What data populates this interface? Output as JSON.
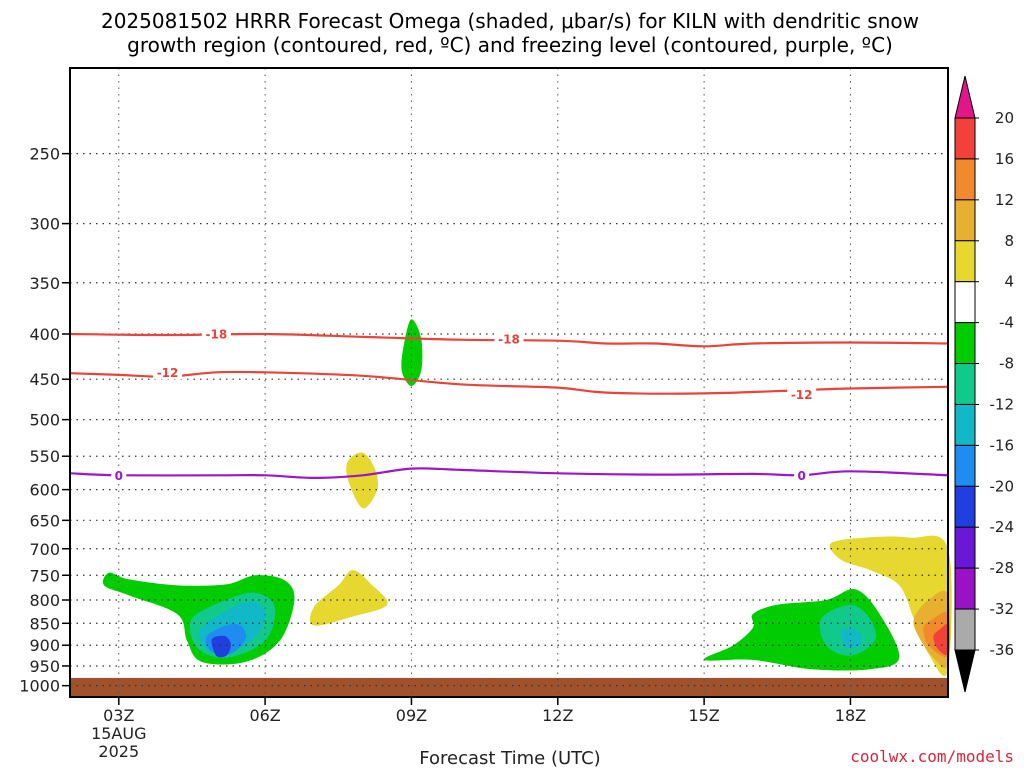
{
  "title_line1": "2025081502 HRRR Forecast Omega (shaded, μbar/s) for KILN with dendritic snow",
  "title_line2": "growth region (contoured, red, ºC) and freezing level (contoured, purple, ºC)",
  "credit": "coolwx.com/models",
  "chart_data": {
    "type": "area",
    "title": "2025081502 HRRR Forecast Omega (shaded, μbar/s) for KILN with dendritic snow growth region (contoured, red, ºC) and freezing level (contoured, purple, ºC)",
    "xlabel": "Forecast Time (UTC)",
    "ylabel": "",
    "y_scale": "log (pressure, hPa, inverted)",
    "ylim": [
      200,
      1030
    ],
    "xlim": [
      2,
      20
    ],
    "grid": true,
    "y_ticks": [
      250,
      300,
      350,
      400,
      450,
      500,
      550,
      600,
      650,
      700,
      750,
      800,
      850,
      900,
      950,
      1000
    ],
    "x_ticks": [
      {
        "x": 3,
        "label": "03Z",
        "sub1": "15AUG",
        "sub2": "2025"
      },
      {
        "x": 6,
        "label": "06Z"
      },
      {
        "x": 9,
        "label": "09Z"
      },
      {
        "x": 12,
        "label": "12Z"
      },
      {
        "x": 15,
        "label": "15Z"
      },
      {
        "x": 18,
        "label": "18Z"
      }
    ],
    "ground_level_hpa": 980,
    "contour_lines": [
      {
        "label": "-18",
        "color": "#e8443a",
        "label_positions": [
          [
            5,
            400
          ],
          [
            11,
            405
          ]
        ],
        "points": [
          [
            2,
            400
          ],
          [
            4,
            401
          ],
          [
            6,
            400
          ],
          [
            8,
            403
          ],
          [
            10,
            406
          ],
          [
            12,
            407
          ],
          [
            13,
            410
          ],
          [
            14,
            410
          ],
          [
            15,
            413
          ],
          [
            16,
            410
          ],
          [
            18,
            409
          ],
          [
            20,
            410
          ]
        ]
      },
      {
        "label": "-12",
        "color": "#e8443a",
        "label_positions": [
          [
            4,
            442
          ],
          [
            17,
            468
          ]
        ],
        "points": [
          [
            2,
            443
          ],
          [
            3,
            445
          ],
          [
            4,
            447
          ],
          [
            5,
            442
          ],
          [
            6,
            442
          ],
          [
            8,
            446
          ],
          [
            10,
            456
          ],
          [
            12,
            460
          ],
          [
            13,
            466
          ],
          [
            15,
            467
          ],
          [
            17,
            463
          ],
          [
            18,
            461
          ],
          [
            20,
            459
          ]
        ]
      },
      {
        "label": "0",
        "color": "#9b17c9",
        "label_positions": [
          [
            3,
            578
          ],
          [
            17,
            578
          ]
        ],
        "points": [
          [
            2,
            575
          ],
          [
            3,
            578
          ],
          [
            5,
            578
          ],
          [
            6,
            578
          ],
          [
            7,
            582
          ],
          [
            8,
            578
          ],
          [
            9,
            568
          ],
          [
            10,
            570
          ],
          [
            12,
            575
          ],
          [
            14,
            577
          ],
          [
            16,
            576
          ],
          [
            17,
            578
          ],
          [
            18,
            572
          ],
          [
            20,
            578
          ]
        ]
      }
    ],
    "shaded_regions": [
      {
        "value_range": [
          -8,
          -4
        ],
        "color": "#00cc00",
        "points": [
          [
            2.8,
            745
          ],
          [
            2.7,
            770
          ],
          [
            3.2,
            790
          ],
          [
            4.2,
            830
          ],
          [
            4.4,
            890
          ],
          [
            4.7,
            940
          ],
          [
            5.6,
            940
          ],
          [
            6.3,
            890
          ],
          [
            6.6,
            800
          ],
          [
            6.4,
            760
          ],
          [
            5.8,
            750
          ],
          [
            5.2,
            768
          ],
          [
            4.2,
            770
          ],
          [
            3.2,
            758
          ]
        ]
      },
      {
        "value_range": [
          -12,
          -8
        ],
        "color": "#11c98a",
        "points": [
          [
            4.5,
            840
          ],
          [
            4.6,
            905
          ],
          [
            5.2,
            930
          ],
          [
            6.0,
            890
          ],
          [
            6.2,
            815
          ],
          [
            5.8,
            785
          ],
          [
            5.2,
            800
          ]
        ]
      },
      {
        "value_range": [
          -16,
          -12
        ],
        "color": "#10b8c8",
        "points": [
          [
            4.7,
            860
          ],
          [
            4.8,
            910
          ],
          [
            5.3,
            915
          ],
          [
            5.8,
            880
          ],
          [
            6.0,
            825
          ],
          [
            5.6,
            805
          ]
        ]
      },
      {
        "value_range": [
          -20,
          -16
        ],
        "color": "#1e8cf0",
        "points": [
          [
            4.8,
            880
          ],
          [
            4.9,
            915
          ],
          [
            5.3,
            920
          ],
          [
            5.6,
            885
          ],
          [
            5.5,
            855
          ],
          [
            5.2,
            855
          ]
        ]
      },
      {
        "value_range": [
          -24,
          -20
        ],
        "color": "#1f3fe0",
        "points": [
          [
            4.9,
            890
          ],
          [
            5.0,
            925
          ],
          [
            5.2,
            925
          ],
          [
            5.3,
            900
          ],
          [
            5.2,
            880
          ],
          [
            5.0,
            880
          ]
        ]
      },
      {
        "value_range": [
          -8,
          -4
        ],
        "color": "#00cc00",
        "points": [
          [
            9.0,
            385
          ],
          [
            8.85,
            410
          ],
          [
            8.8,
            440
          ],
          [
            9.0,
            458
          ],
          [
            9.2,
            440
          ],
          [
            9.2,
            405
          ]
        ]
      },
      {
        "value_range": [
          4,
          8
        ],
        "color": "#e6d82f",
        "points": [
          [
            7.7,
            557
          ],
          [
            7.7,
            585
          ],
          [
            8.0,
            630
          ],
          [
            8.3,
            600
          ],
          [
            8.25,
            568
          ],
          [
            8.0,
            545
          ]
        ]
      },
      {
        "value_range": [
          4,
          8
        ],
        "color": "#e6d82f",
        "points": [
          [
            7.0,
            815
          ],
          [
            7.0,
            855
          ],
          [
            7.8,
            835
          ],
          [
            8.5,
            810
          ],
          [
            8.2,
            770
          ],
          [
            7.8,
            740
          ],
          [
            7.5,
            770
          ]
        ]
      },
      {
        "value_range": [
          -8,
          -4
        ],
        "color": "#00cc00",
        "points": [
          [
            15.0,
            935
          ],
          [
            16.0,
            935
          ],
          [
            17.2,
            958
          ],
          [
            18.4,
            958
          ],
          [
            19.0,
            930
          ],
          [
            18.6,
            830
          ],
          [
            18.1,
            778
          ],
          [
            17.5,
            800
          ],
          [
            16.5,
            810
          ],
          [
            16.0,
            830
          ],
          [
            16.0,
            860
          ],
          [
            15.6,
            900
          ]
        ]
      },
      {
        "value_range": [
          -12,
          -8
        ],
        "color": "#11c98a",
        "points": [
          [
            17.4,
            840
          ],
          [
            17.5,
            900
          ],
          [
            18.0,
            925
          ],
          [
            18.5,
            890
          ],
          [
            18.4,
            840
          ],
          [
            18.0,
            810
          ]
        ]
      },
      {
        "value_range": [
          -16,
          -12
        ],
        "color": "#10b8c8",
        "points": [
          [
            17.8,
            870
          ],
          [
            17.9,
            905
          ],
          [
            18.2,
            900
          ],
          [
            18.2,
            875
          ],
          [
            18.0,
            860
          ]
        ]
      },
      {
        "value_range": [
          4,
          8
        ],
        "color": "#e6d82f",
        "points": [
          [
            17.6,
            690
          ],
          [
            17.8,
            720
          ],
          [
            18.4,
            740
          ],
          [
            19.0,
            770
          ],
          [
            19.3,
            840
          ],
          [
            19.6,
            920
          ],
          [
            20.0,
            960
          ],
          [
            20.0,
            700
          ],
          [
            19.2,
            680
          ],
          [
            18.3,
            680
          ]
        ]
      },
      {
        "value_range": [
          8,
          12
        ],
        "color": "#e8b030",
        "points": [
          [
            19.3,
            840
          ],
          [
            19.4,
            880
          ],
          [
            19.7,
            930
          ],
          [
            20.0,
            945
          ],
          [
            20.0,
            790
          ],
          [
            19.6,
            800
          ]
        ]
      },
      {
        "value_range": [
          12,
          16
        ],
        "color": "#f08a2c",
        "points": [
          [
            19.5,
            860
          ],
          [
            19.6,
            900
          ],
          [
            20.0,
            925
          ],
          [
            20.0,
            830
          ],
          [
            19.7,
            840
          ]
        ]
      },
      {
        "value_range": [
          16,
          20
        ],
        "color": "#f2403a",
        "points": [
          [
            19.7,
            880
          ],
          [
            19.8,
            910
          ],
          [
            20.0,
            920
          ],
          [
            20.0,
            855
          ],
          [
            19.85,
            862
          ]
        ]
      }
    ],
    "colorbar": {
      "levels": [
        "20",
        "16",
        "12",
        "8",
        "4",
        "-4",
        "-8",
        "-12",
        "-16",
        "-20",
        "-24",
        "-28",
        "-32",
        "-36"
      ],
      "colors": [
        "#f2403a",
        "#f08a2c",
        "#e8b030",
        "#e6d82f",
        "#ffffff",
        "#00cc00",
        "#11c98a",
        "#10b8c8",
        "#1e8cf0",
        "#1f3fe0",
        "#6a18d8",
        "#9a12c6",
        "#aaaaaa"
      ],
      "top_arrow_color": "#e0178a",
      "bottom_arrow_color": "#000000"
    }
  }
}
